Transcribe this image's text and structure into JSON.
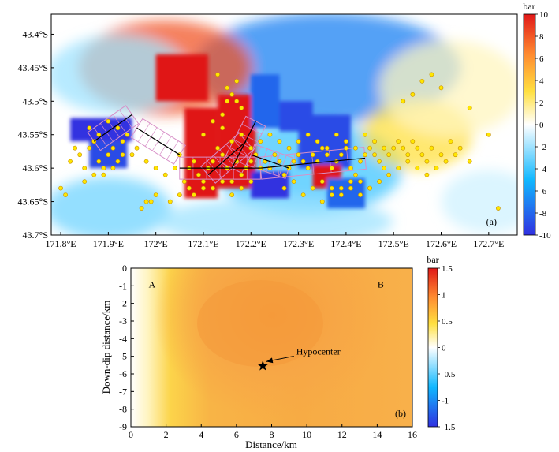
{
  "chart_data": [
    {
      "panel": "(a)",
      "type": "heatmap",
      "title": "",
      "xlabel": "",
      "ylabel": "",
      "x_ticks": [
        "171.8°E",
        "171.9°E",
        "172°E",
        "172.1°E",
        "172.2°E",
        "172.3°E",
        "172.4°E",
        "172.5°E",
        "172.6°E",
        "172.7°E"
      ],
      "x_tick_values": [
        171.8,
        171.9,
        172.0,
        172.1,
        172.2,
        172.3,
        172.4,
        172.5,
        172.6,
        172.7
      ],
      "y_ticks": [
        "43.4°S",
        "43.45°S",
        "43.5°S",
        "43.55°S",
        "43.6°S",
        "43.65°S",
        "43.7°S"
      ],
      "y_tick_values": [
        -43.4,
        -43.45,
        -43.5,
        -43.55,
        -43.6,
        -43.65,
        -43.7
      ],
      "xlim": [
        171.78,
        172.76
      ],
      "ylim": [
        -43.7,
        -43.37
      ],
      "colorbar": {
        "unit": "bar",
        "min": -10,
        "max": 10,
        "ticks": [
          "10",
          "8",
          "6",
          "4",
          "2",
          "0",
          "-2",
          "-4",
          "-6",
          "-8",
          "-10"
        ],
        "tick_values": [
          10,
          8,
          6,
          4,
          2,
          0,
          -2,
          -4,
          -6,
          -8,
          -10
        ],
        "colors": [
          "#3030e0",
          "#00c8ff",
          "#ffffff",
          "#ffe040",
          "#ff9030",
          "#e02020"
        ]
      },
      "blocks": [
        {
          "lon0": 171.82,
          "lon1": 171.95,
          "lat0": -43.56,
          "lat1": -43.525,
          "value": -10
        },
        {
          "lon0": 171.86,
          "lon1": 171.94,
          "lat0": -43.6,
          "lat1": -43.56,
          "value": -9
        },
        {
          "lon0": 172.0,
          "lon1": 172.11,
          "lat0": -43.5,
          "lat1": -43.43,
          "value": 10
        },
        {
          "lon0": 172.06,
          "lon1": 172.13,
          "lat0": -43.645,
          "lat1": -43.51,
          "value": 10
        },
        {
          "lon0": 172.13,
          "lon1": 172.21,
          "lat0": -43.63,
          "lat1": -43.49,
          "value": 10
        },
        {
          "lon0": 172.2,
          "lon1": 172.26,
          "lat0": -43.54,
          "lat1": -43.46,
          "value": -8
        },
        {
          "lon0": 172.26,
          "lon1": 172.33,
          "lat0": -43.545,
          "lat1": -43.5,
          "value": -9
        },
        {
          "lon0": 172.3,
          "lon1": 172.41,
          "lat0": -43.6,
          "lat1": -43.52,
          "value": -9
        },
        {
          "lon0": 172.2,
          "lon1": 172.28,
          "lat0": -43.645,
          "lat1": -43.605,
          "value": -10
        },
        {
          "lon0": 172.33,
          "lon1": 172.39,
          "lat0": -43.63,
          "lat1": -43.595,
          "value": 10
        },
        {
          "lon0": 172.36,
          "lon1": 172.44,
          "lat0": -43.66,
          "lat1": -43.615,
          "value": -8
        }
      ],
      "faults": [
        [
          [
            171.87,
            -43.56
          ],
          [
            171.95,
            -43.52
          ]
        ],
        [
          [
            171.96,
            -43.54
          ],
          [
            172.05,
            -43.58
          ]
        ],
        [
          [
            172.05,
            -43.6
          ],
          [
            172.22,
            -43.6
          ]
        ],
        [
          [
            172.11,
            -43.61
          ],
          [
            172.19,
            -43.56
          ]
        ],
        [
          [
            172.16,
            -43.6
          ],
          [
            172.21,
            -43.53
          ]
        ],
        [
          [
            172.2,
            -43.58
          ],
          [
            172.28,
            -43.6
          ]
        ],
        [
          [
            172.22,
            -43.6
          ],
          [
            172.44,
            -43.585
          ]
        ]
      ],
      "series": [
        {
          "type": "scatter",
          "marker_color": "#ffe600",
          "marker_edge": "#c89000",
          "x": [
            171.82,
            171.84,
            171.85,
            171.86,
            171.87,
            171.88,
            171.89,
            171.9,
            171.91,
            171.92,
            171.93,
            171.94,
            171.85,
            171.87,
            171.89,
            171.91,
            171.93,
            171.86,
            171.88,
            171.9,
            171.92,
            171.83,
            171.95,
            171.96,
            171.98,
            172.0,
            172.02,
            172.04,
            172.05,
            172.06,
            172.07,
            172.08,
            172.09,
            172.1,
            172.11,
            172.12,
            172.13,
            172.14,
            172.15,
            172.16,
            172.17,
            172.18,
            172.19,
            172.2,
            172.21,
            172.22,
            172.23,
            172.24,
            172.25,
            172.26,
            172.27,
            172.28,
            172.29,
            172.3,
            172.31,
            172.32,
            172.33,
            172.34,
            172.35,
            172.36,
            172.37,
            172.38,
            172.39,
            172.4,
            172.41,
            172.42,
            172.43,
            172.44,
            172.45,
            172.46,
            172.47,
            172.48,
            172.49,
            172.5,
            172.51,
            172.52,
            172.53,
            172.54,
            172.55,
            172.56,
            172.57,
            172.58,
            172.6,
            172.62,
            172.64,
            172.66,
            172.7,
            172.1,
            172.12,
            172.14,
            172.15,
            172.16,
            172.17,
            172.18,
            172.13,
            172.15,
            172.17,
            172.14,
            172.16,
            172.18,
            172.2,
            172.22,
            172.24,
            172.26,
            172.28,
            172.3,
            172.32,
            172.34,
            172.36,
            172.38,
            172.4,
            172.42,
            172.44,
            172.46,
            172.48,
            172.35,
            172.37,
            172.39,
            172.41,
            172.43,
            172.45,
            172.47,
            172.49,
            172.51,
            172.53,
            172.55,
            172.57,
            172.59,
            172.61,
            172.63,
            172.27,
            172.29,
            172.31,
            172.33,
            172.35,
            172.37,
            172.39,
            172.41,
            172.43,
            172.45,
            172.47,
            172.12,
            172.14,
            172.16,
            172.18,
            172.2,
            172.08,
            172.1,
            172.03,
            172.05,
            172.07,
            171.98,
            172.0,
            171.97,
            171.99,
            171.8,
            171.81,
            172.56,
            172.58,
            172.6,
            172.52,
            172.54,
            172.66,
            172.72
          ],
          "y": [
            -43.59,
            -43.58,
            -43.6,
            -43.57,
            -43.56,
            -43.59,
            -43.6,
            -43.58,
            -43.57,
            -43.59,
            -43.56,
            -43.55,
            -43.62,
            -43.61,
            -43.61,
            -43.6,
            -43.58,
            -43.54,
            -43.55,
            -43.53,
            -43.54,
            -43.57,
            -43.58,
            -43.57,
            -43.59,
            -43.6,
            -43.61,
            -43.6,
            -43.58,
            -43.62,
            -43.6,
            -43.59,
            -43.61,
            -43.62,
            -43.6,
            -43.59,
            -43.57,
            -43.58,
            -43.6,
            -43.62,
            -43.59,
            -43.61,
            -43.6,
            -43.59,
            -43.58,
            -43.6,
            -43.59,
            -43.6,
            -43.58,
            -43.59,
            -43.61,
            -43.6,
            -43.59,
            -43.58,
            -43.59,
            -43.6,
            -43.58,
            -43.59,
            -43.57,
            -43.58,
            -43.6,
            -43.59,
            -43.58,
            -43.57,
            -43.6,
            -43.61,
            -43.59,
            -43.58,
            -43.57,
            -43.58,
            -43.59,
            -43.6,
            -43.58,
            -43.57,
            -43.56,
            -43.57,
            -43.58,
            -43.56,
            -43.57,
            -43.58,
            -43.59,
            -43.57,
            -43.58,
            -43.56,
            -43.57,
            -43.59,
            -43.55,
            -43.55,
            -43.53,
            -43.52,
            -43.5,
            -43.49,
            -43.47,
            -43.51,
            -43.46,
            -43.48,
            -43.5,
            -43.54,
            -43.56,
            -43.55,
            -43.57,
            -43.56,
            -43.55,
            -43.56,
            -43.57,
            -43.56,
            -43.55,
            -43.56,
            -43.57,
            -43.55,
            -43.56,
            -43.57,
            -43.55,
            -43.56,
            -43.57,
            -43.62,
            -43.63,
            -43.64,
            -43.63,
            -43.62,
            -43.63,
            -43.62,
            -43.61,
            -43.6,
            -43.59,
            -43.6,
            -43.61,
            -43.6,
            -43.59,
            -43.58,
            -43.63,
            -43.62,
            -43.64,
            -43.63,
            -43.65,
            -43.64,
            -43.63,
            -43.62,
            -43.64,
            -43.63,
            -43.62,
            -43.63,
            -43.62,
            -43.64,
            -43.63,
            -43.62,
            -43.64,
            -43.63,
            -43.65,
            -43.64,
            -43.63,
            -43.65,
            -43.64,
            -43.66,
            -43.65,
            -43.63,
            -43.64,
            -43.47,
            -43.46,
            -43.48,
            -43.5,
            -43.49,
            -43.51,
            -43.66
          ]
        }
      ]
    },
    {
      "panel": "(b)",
      "type": "heatmap",
      "title": "",
      "xlabel": "Distance/km",
      "ylabel": "Down-dip distance/km",
      "x_ticks": [
        "0",
        "2",
        "4",
        "6",
        "8",
        "10",
        "12",
        "14",
        "16"
      ],
      "x_tick_values": [
        0,
        2,
        4,
        6,
        8,
        10,
        12,
        14,
        16
      ],
      "y_ticks": [
        "0",
        "-1",
        "-2",
        "-3",
        "-4",
        "-5",
        "-6",
        "-7",
        "-8",
        "-9"
      ],
      "y_tick_values": [
        0,
        -1,
        -2,
        -3,
        -4,
        -5,
        -6,
        -7,
        -8,
        -9
      ],
      "xlim": [
        0,
        16
      ],
      "ylim": [
        -9,
        0
      ],
      "colorbar": {
        "unit": "bar",
        "min": -1.5,
        "max": 1.5,
        "ticks": [
          "1.5",
          "1",
          "0.5",
          "0",
          "-0.5",
          "-1",
          "-1.5"
        ],
        "tick_values": [
          1.5,
          1,
          0.5,
          0,
          -0.5,
          -1,
          -1.5
        ],
        "colors": [
          "#3030e0",
          "#00c8ff",
          "#ffffff",
          "#ffe040",
          "#ff9030",
          "#e02020"
        ]
      },
      "field": {
        "min_value": 0.0,
        "max_value": 0.9,
        "peak_x": 8,
        "peak_y": -3,
        "typical_value": 0.75
      },
      "annotations": [
        {
          "text": "A",
          "x": 1.2,
          "y": -1.1
        },
        {
          "text": "B",
          "x": 14.2,
          "y": -1.1
        },
        {
          "text": "Hypocenter",
          "x": 9.4,
          "y": -4.9,
          "arrow_to": [
            7.7,
            -5.3
          ]
        }
      ],
      "hypocenter": {
        "x": 7.5,
        "y": -5.55
      }
    }
  ]
}
